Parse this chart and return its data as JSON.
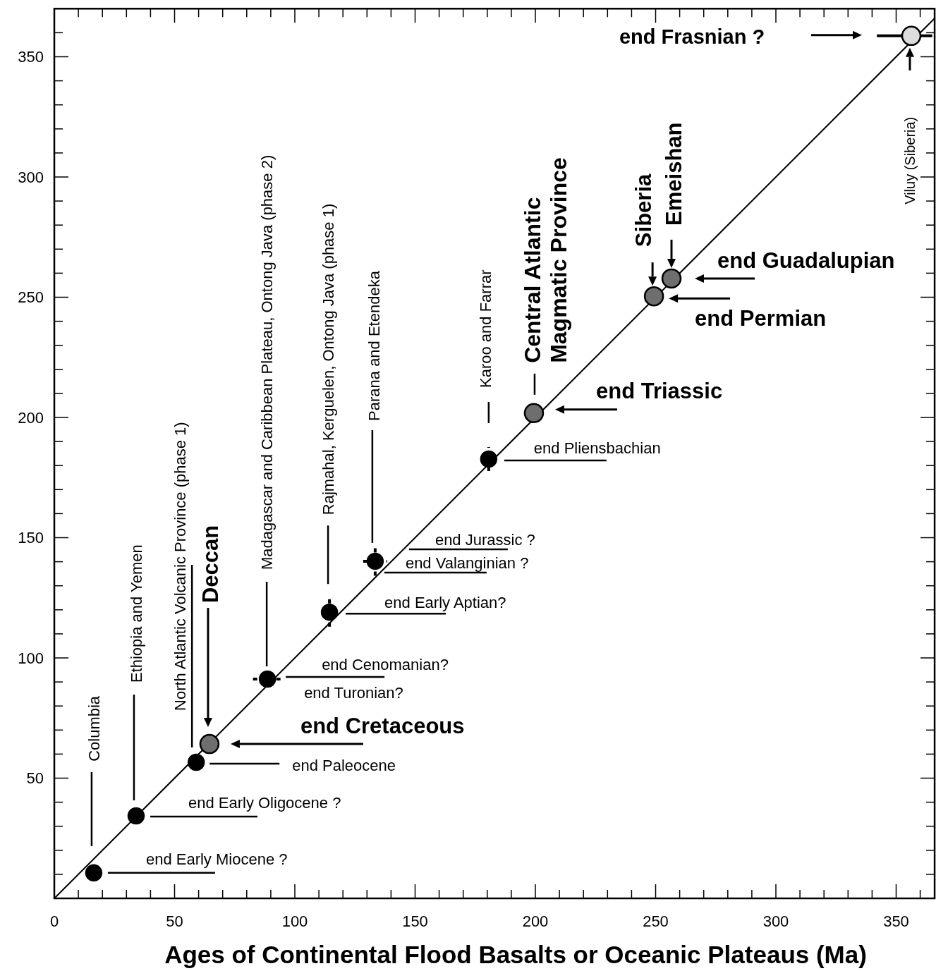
{
  "chart_data": {
    "type": "scatter",
    "xlabel": "Ages of Continental Flood Basalts or Oceanic Plateaus (Ma)",
    "xlim": [
      0,
      366
    ],
    "ylim": [
      0,
      370
    ],
    "xticks": [
      {
        "value": 0,
        "label": "0"
      },
      {
        "value": 10,
        "label": null
      },
      {
        "value": 20,
        "label": null
      },
      {
        "value": 30,
        "label": null
      },
      {
        "value": 40,
        "label": null
      },
      50,
      {
        "value": 60,
        "label": null
      },
      {
        "value": 70,
        "label": null
      },
      {
        "value": 80,
        "label": null
      },
      {
        "value": 90,
        "label": null
      },
      100,
      {
        "value": 110,
        "label": null
      },
      {
        "value": 120,
        "label": null
      },
      {
        "value": 130,
        "label": null
      },
      {
        "value": 140,
        "label": null
      },
      150,
      {
        "value": 160,
        "label": null
      },
      {
        "value": 170,
        "label": null
      },
      {
        "value": 180,
        "label": null
      },
      {
        "value": 190,
        "label": null
      },
      200,
      {
        "value": 210,
        "label": null
      },
      {
        "value": 220,
        "label": null
      },
      {
        "value": 230,
        "label": null
      },
      {
        "value": 240,
        "label": null
      },
      250,
      {
        "value": 260,
        "label": null
      },
      {
        "value": 270,
        "label": null
      },
      {
        "value": 280,
        "label": null
      },
      {
        "value": 290,
        "label": null
      },
      300,
      {
        "value": 310,
        "label": null
      },
      {
        "value": 320,
        "label": null
      },
      {
        "value": 330,
        "label": null
      },
      {
        "value": 340,
        "label": null
      },
      350,
      {
        "value": 360,
        "label": null
      }
    ],
    "yticks": [
      {
        "value": 10,
        "label": null
      },
      {
        "value": 20,
        "label": null
      },
      {
        "value": 30,
        "label": null
      },
      {
        "value": 40,
        "label": null
      },
      50,
      {
        "value": 60,
        "label": null
      },
      {
        "value": 70,
        "label": null
      },
      {
        "value": 80,
        "label": null
      },
      {
        "value": 90,
        "label": null
      },
      100,
      {
        "value": 110,
        "label": null
      },
      {
        "value": 120,
        "label": null
      },
      {
        "value": 130,
        "label": null
      },
      {
        "value": 140,
        "label": null
      },
      150,
      {
        "value": 160,
        "label": null
      },
      {
        "value": 170,
        "label": null
      },
      {
        "value": 180,
        "label": null
      },
      {
        "value": 190,
        "label": null
      },
      200,
      {
        "value": 210,
        "label": null
      },
      {
        "value": 220,
        "label": null
      },
      {
        "value": 230,
        "label": null
      },
      {
        "value": 240,
        "label": null
      },
      250,
      {
        "value": 260,
        "label": null
      },
      {
        "value": 270,
        "label": null
      },
      {
        "value": 280,
        "label": null
      },
      {
        "value": 290,
        "label": null
      },
      300,
      {
        "value": 310,
        "label": null
      },
      {
        "value": 320,
        "label": null
      },
      {
        "value": 330,
        "label": null
      },
      {
        "value": 340,
        "label": null
      },
      350,
      {
        "value": 360,
        "label": null
      }
    ],
    "grid": false,
    "marker": "circle",
    "series": [
      {
        "type": "line",
        "color": "#000000",
        "marker": "none",
        "x": [
          0,
          366
        ],
        "values": [
          0,
          366
        ]
      },
      {
        "color": "#000000",
        "x": [
          16.4,
          34,
          59,
          88.6,
          114.4,
          133.4,
          180.6
        ],
        "values": [
          10.6,
          34.3,
          56.6,
          91.2,
          119,
          140.2,
          182.7
        ],
        "errors": [
          null,
          null,
          null,
          null,
          6,
          6,
          5
        ],
        "xerrors": [
          null,
          null,
          null,
          6,
          null,
          5,
          null
        ]
      },
      {
        "color": "#6e6e6e",
        "x": [
          64.5,
          199.4,
          249.3,
          256.6
        ],
        "values": [
          64.2,
          201.8,
          250.4,
          257.8
        ]
      },
      {
        "color": "#dcdcdc",
        "x": [
          356.3
        ],
        "values": [
          358.7
        ],
        "xerrors": [
          [
            342,
            365
          ]
        ]
      }
    ],
    "annotations": [
      "Columbia",
      "end Early Miocene ?",
      "Ethiopia and Yemen",
      "end Early Oligocene ?",
      "North Atlantic Volcanic Province (phase 1)",
      "end Paleocene",
      "Deccan",
      "end Cretaceous",
      "Madagascar and Caribbean Plateau, Ontong Java (phase 2)",
      "end Cenomanian?",
      "end Turonian?",
      "Rajmahal, Kerguelen, Ontong Java (phase 1)",
      "end Early Aptian?",
      "Parana and Etendeka",
      "end Jurassic ?",
      "end Valanginian ?",
      "Karoo and Farrar",
      "end Pliensbachian",
      "Central Atlantic Magmatic Province",
      "end Triassic",
      "Siberia",
      "end Permian",
      "Emeishan",
      "end Guadalupian",
      "Viluy (Siberia)",
      "end Frasnian ?"
    ]
  }
}
